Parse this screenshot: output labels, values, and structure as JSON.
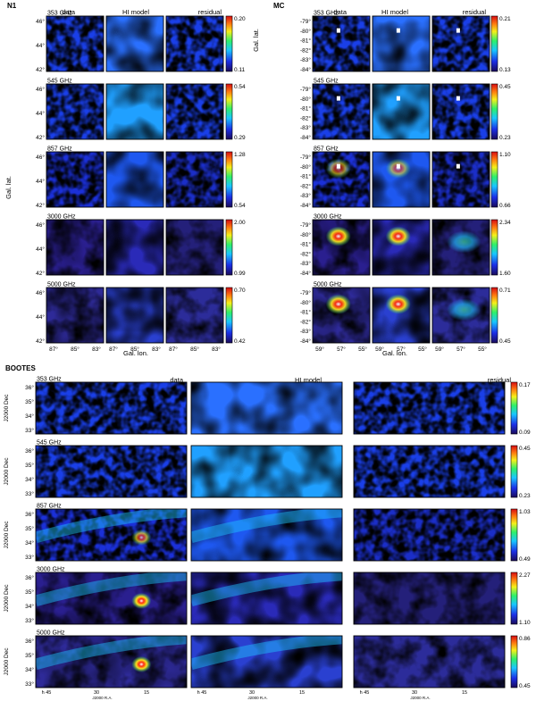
{
  "panels": {
    "n1": {
      "field": "N1",
      "columns": [
        "data",
        "HI model",
        "residual"
      ],
      "ylabel": "Gal. lat.",
      "xlabel": "Gal. lon.",
      "yticks": [
        "46°",
        "44°",
        "42°"
      ],
      "xticks": [
        "87°",
        "85°",
        "83°"
      ],
      "rows": [
        {
          "freq": "353 GHz",
          "cmin": "0.11",
          "cmax": "0.20"
        },
        {
          "freq": "545 GHz",
          "cmin": "0.29",
          "cmax": "0.54"
        },
        {
          "freq": "857 GHz",
          "cmin": "0.54",
          "cmax": "1.28"
        },
        {
          "freq": "3000 GHz",
          "cmin": "0.99",
          "cmax": "2.00"
        },
        {
          "freq": "5000 GHz",
          "cmin": "0.42",
          "cmax": "0.70"
        }
      ]
    },
    "mc": {
      "field": "MC",
      "columns": [
        "data",
        "HI model",
        "residual"
      ],
      "ylabel": "Gal. lat.",
      "xlabel": "Gal. lon.",
      "yticks": [
        "-79°",
        "-80°",
        "-81°",
        "-82°",
        "-83°",
        "-84°"
      ],
      "xticks": [
        "59°",
        "57°",
        "55°"
      ],
      "rows": [
        {
          "freq": "353 GHz",
          "cmin": "0.13",
          "cmax": "0.21"
        },
        {
          "freq": "545 GHz",
          "cmin": "0.23",
          "cmax": "0.45"
        },
        {
          "freq": "857 GHz",
          "cmin": "0.66",
          "cmax": "1.10"
        },
        {
          "freq": "3000 GHz",
          "cmin": "1.60",
          "cmax": "2.34"
        },
        {
          "freq": "5000 GHz",
          "cmin": "0.45",
          "cmax": "0.71"
        }
      ]
    },
    "bootes": {
      "field": "BOOTES",
      "columns": [
        "data",
        "HI model",
        "residual"
      ],
      "ylabel": "J2000 Dec",
      "xlabel": "J2000 R.A.",
      "yticks": [
        "36°",
        "35°",
        "34°",
        "33°"
      ],
      "xticks": [
        "h 45",
        "30",
        "15"
      ],
      "rows": [
        {
          "freq": "353 GHz",
          "cmin": "0.09",
          "cmax": "0.17"
        },
        {
          "freq": "545 GHz",
          "cmin": "0.23",
          "cmax": "0.45"
        },
        {
          "freq": "857 GHz",
          "cmin": "0.49",
          "cmax": "1.03"
        },
        {
          "freq": "3000 GHz",
          "cmin": "1.10",
          "cmax": "2.27"
        },
        {
          "freq": "5000 GHz",
          "cmin": "0.45",
          "cmax": "0.86"
        }
      ]
    }
  }
}
